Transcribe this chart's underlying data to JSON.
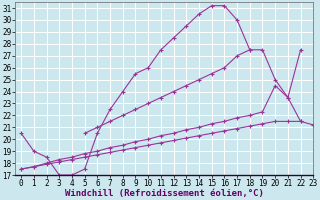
{
  "xlabel": "Windchill (Refroidissement éolien,°C)",
  "xlim": [
    -0.5,
    23
  ],
  "ylim": [
    17,
    31.5
  ],
  "xticks": [
    0,
    1,
    2,
    3,
    4,
    5,
    6,
    7,
    8,
    9,
    10,
    11,
    12,
    13,
    14,
    15,
    16,
    17,
    18,
    19,
    20,
    21,
    22,
    23
  ],
  "yticks": [
    17,
    18,
    19,
    20,
    21,
    22,
    23,
    24,
    25,
    26,
    27,
    28,
    29,
    30,
    31
  ],
  "background_color": "#cce8ee",
  "grid_color": "#ffffff",
  "line_color": "#993399",
  "curve1_x": [
    0,
    1,
    2,
    3,
    4,
    5,
    6,
    7,
    8,
    9,
    10,
    11,
    12,
    13,
    14,
    15,
    16,
    17,
    18
  ],
  "curve1_y": [
    20.5,
    19.0,
    18.5,
    17.0,
    17.0,
    17.5,
    20.5,
    22.5,
    24.0,
    25.5,
    26.0,
    27.5,
    28.5,
    29.5,
    30.5,
    31.2,
    31.2,
    30.0,
    27.5
  ],
  "curve2_x": [
    5,
    6,
    7,
    8,
    9,
    10,
    11,
    12,
    13,
    14,
    15,
    16,
    17,
    18,
    19,
    20,
    21,
    22
  ],
  "curve2_y": [
    20.5,
    21.0,
    21.5,
    22.0,
    22.5,
    23.0,
    23.5,
    24.0,
    24.5,
    25.0,
    25.5,
    26.0,
    27.0,
    27.5,
    27.5,
    25.0,
    23.5,
    27.5
  ],
  "curve3_x": [
    0,
    1,
    2,
    3,
    4,
    5,
    6,
    7,
    8,
    9,
    10,
    11,
    12,
    13,
    14,
    15,
    16,
    17,
    18,
    19,
    20,
    21,
    22
  ],
  "curve3_y": [
    17.5,
    17.7,
    18.0,
    18.3,
    18.5,
    18.8,
    19.0,
    19.3,
    19.5,
    19.8,
    20.0,
    20.3,
    20.5,
    20.8,
    21.0,
    21.3,
    21.5,
    21.8,
    22.0,
    22.3,
    24.5,
    23.5,
    21.5
  ],
  "curve4_x": [
    0,
    1,
    2,
    3,
    4,
    5,
    6,
    7,
    8,
    9,
    10,
    11,
    12,
    13,
    14,
    15,
    16,
    17,
    18,
    19,
    20,
    21,
    22,
    23
  ],
  "curve4_y": [
    17.5,
    17.7,
    17.9,
    18.1,
    18.3,
    18.5,
    18.7,
    18.9,
    19.1,
    19.3,
    19.5,
    19.7,
    19.9,
    20.1,
    20.3,
    20.5,
    20.7,
    20.9,
    21.1,
    21.3,
    21.5,
    21.5,
    21.5,
    21.2
  ],
  "font_size_xlabel": 6.5,
  "font_size_ytick": 5.5,
  "font_size_xtick": 5.5
}
